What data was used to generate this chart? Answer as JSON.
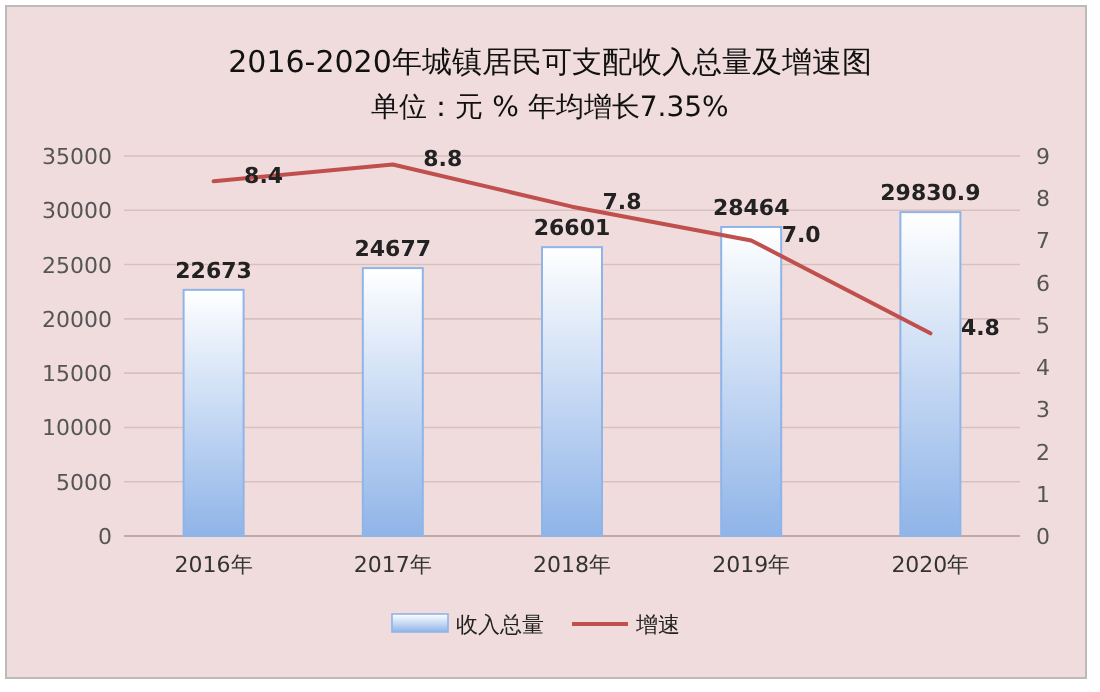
{
  "chart_data": {
    "type": "bar",
    "title": "2016-2020年城镇居民可支配收入总量及增速图",
    "subtitle": "单位：元  %  年均增长7.35%",
    "categories": [
      "2016年",
      "2017年",
      "2018年",
      "2019年",
      "2020年"
    ],
    "series": [
      {
        "name": "收入总量",
        "color": "#8fb4e8",
        "values": [
          22673,
          24677,
          26601,
          28464,
          29830.9
        ]
      },
      {
        "name": "增速",
        "type": "line",
        "axis": "y2",
        "color": "#c0504d",
        "values": [
          8.4,
          8.8,
          7.8,
          7.0,
          4.8
        ],
        "value_labels": [
          "8.4",
          "8.8",
          "7.8",
          "7.0",
          "4.8"
        ]
      }
    ],
    "ylim": [
      0,
      35000
    ],
    "yticks": [
      0,
      5000,
      10000,
      15000,
      20000,
      25000,
      30000,
      35000
    ],
    "y2lim": [
      0,
      9
    ],
    "y2ticks": [
      0,
      1,
      2,
      3,
      4,
      5,
      6,
      7,
      8,
      9
    ],
    "grid": "y",
    "legend": "bottom",
    "data_labels": true,
    "marker": "none"
  }
}
